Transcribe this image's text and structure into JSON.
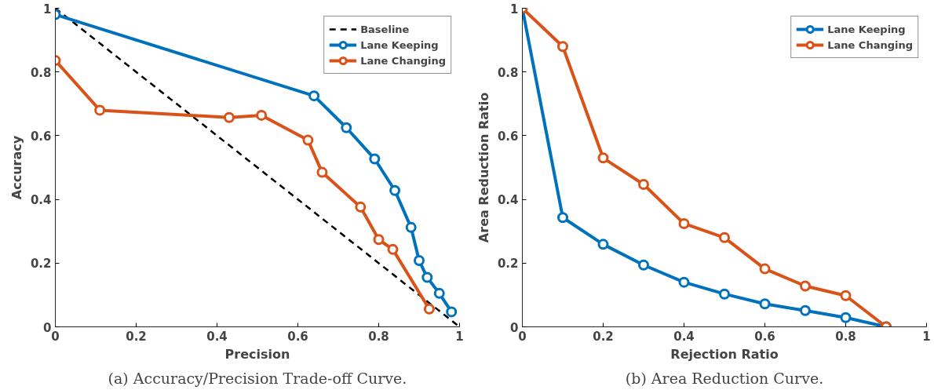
{
  "chart_data": [
    {
      "type": "line",
      "title": "(a) Accuracy/Precision Trade-off Curve.",
      "xlabel": "Precision",
      "ylabel": "Accuracy",
      "xlim": [
        0,
        1
      ],
      "ylim": [
        0,
        1
      ],
      "xticks": [
        0,
        0.2,
        0.4,
        0.6,
        0.8,
        1
      ],
      "yticks": [
        0,
        0.2,
        0.4,
        0.6,
        0.8,
        1
      ],
      "grid": false,
      "legend": "top right",
      "marker": "circle",
      "series": [
        {
          "name": "Baseline",
          "color": "#000000",
          "x": [
            0,
            1
          ],
          "values": [
            1,
            0
          ],
          "line_style": "dashed",
          "marker": "none"
        },
        {
          "name": "Lane Keeping",
          "color": "#0072bd",
          "x": [
            0,
            0.64,
            0.72,
            0.79,
            0.84,
            0.88,
            0.9,
            0.92,
            0.95,
            0.98
          ],
          "values": [
            0.98,
            0.725,
            0.625,
            0.527,
            0.428,
            0.312,
            0.208,
            0.155,
            0.105,
            0.047
          ]
        },
        {
          "name": "Lane Changing",
          "color": "#d95319",
          "x": [
            0,
            0.11,
            0.43,
            0.51,
            0.625,
            0.66,
            0.755,
            0.8,
            0.835,
            0.925
          ],
          "values": [
            0.836,
            0.68,
            0.657,
            0.664,
            0.586,
            0.485,
            0.376,
            0.274,
            0.243,
            0.056
          ]
        }
      ]
    },
    {
      "type": "line",
      "title": "(b) Area Reduction Curve.",
      "xlabel": "Rejection Ratio",
      "ylabel": "Area Reduction Ratio",
      "xlim": [
        0,
        1
      ],
      "ylim": [
        0,
        1
      ],
      "xticks": [
        0,
        0.2,
        0.4,
        0.6,
        0.8,
        1
      ],
      "yticks": [
        0,
        0.2,
        0.4,
        0.6,
        0.8,
        1
      ],
      "grid": false,
      "legend": "top right",
      "marker": "circle",
      "x": [
        0,
        0.1,
        0.2,
        0.3,
        0.4,
        0.5,
        0.6,
        0.7,
        0.8,
        0.9
      ],
      "series": [
        {
          "name": "Lane Keeping",
          "color": "#0072bd",
          "values": [
            1,
            0.343,
            0.259,
            0.194,
            0.14,
            0.103,
            0.072,
            0.051,
            0.029,
            0
          ]
        },
        {
          "name": "Lane Changing",
          "color": "#d95319",
          "values": [
            1,
            0.88,
            0.53,
            0.447,
            0.324,
            0.28,
            0.182,
            0.128,
            0.098,
            0
          ]
        }
      ]
    }
  ]
}
